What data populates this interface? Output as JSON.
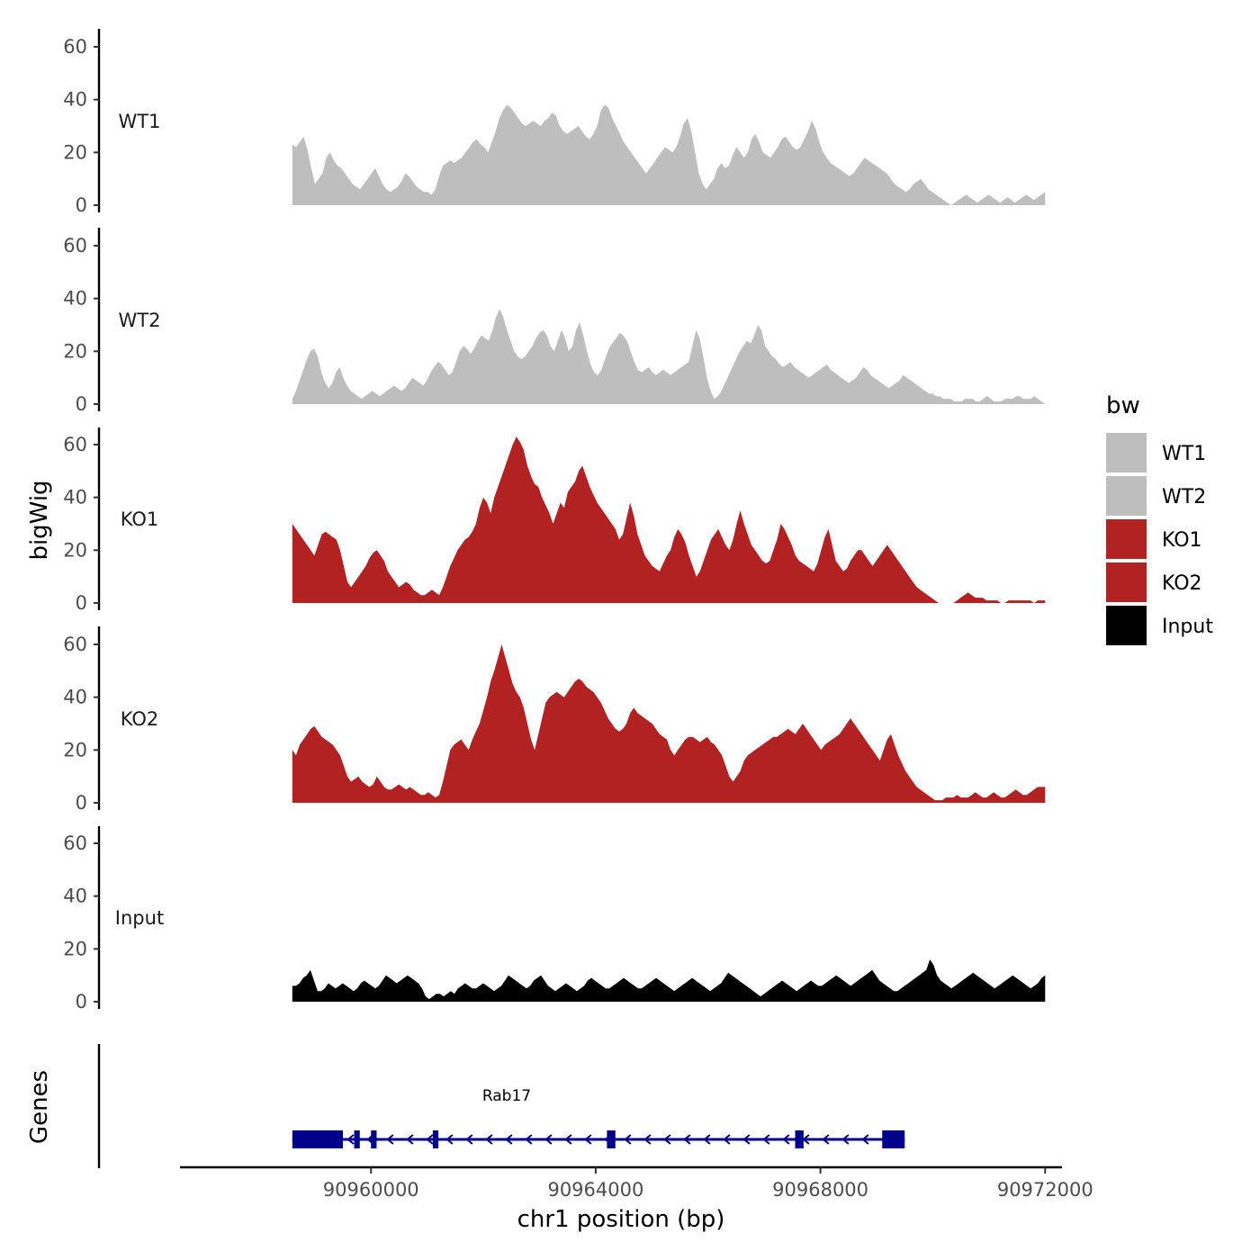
{
  "chart_data": {
    "type": "area",
    "title": "",
    "ylabel": "bigWig",
    "xlabel": "chr1 position (bp)",
    "ylim": [
      0,
      66
    ],
    "xlim": [
      90956600,
      90972300
    ],
    "yticks": [
      0,
      20,
      40,
      60
    ],
    "xticks": [
      90960000,
      90964000,
      90968000,
      90972000
    ],
    "xtick_labels": [
      "90960000",
      "90964000",
      "90968000",
      "90972000"
    ],
    "ytick_labels": [
      "0",
      "20",
      "40",
      "60"
    ],
    "track_x_range": [
      90958600,
      90972000
    ],
    "legend": {
      "title": "bw",
      "position": "right",
      "entries": [
        {
          "label": "WT1",
          "color": "#bebebe"
        },
        {
          "label": "WT2",
          "color": "#bebebe"
        },
        {
          "label": "KO1",
          "color": "#b22222"
        },
        {
          "label": "KO2",
          "color": "#b22222"
        },
        {
          "label": "Input",
          "color": "#000000"
        }
      ]
    },
    "series": [
      {
        "name": "WT1",
        "color": "#bebebe",
        "values": [
          23,
          22,
          24,
          26,
          21,
          14,
          8,
          10,
          12,
          18,
          20,
          17,
          15,
          14,
          12,
          10,
          8,
          7,
          6,
          8,
          10,
          12,
          14,
          11,
          8,
          6,
          5,
          6,
          7,
          9,
          12,
          11,
          9,
          7,
          6,
          5,
          5,
          4,
          6,
          11,
          15,
          16,
          17,
          16,
          17,
          18,
          20,
          22,
          24,
          25,
          23,
          22,
          20,
          24,
          28,
          33,
          36,
          38,
          37,
          35,
          33,
          31,
          30,
          31,
          32,
          31,
          30,
          32,
          33,
          35,
          34,
          30,
          28,
          27,
          28,
          29,
          30,
          28,
          26,
          25,
          27,
          30,
          36,
          38,
          37,
          33,
          30,
          27,
          24,
          22,
          20,
          18,
          16,
          14,
          12,
          14,
          16,
          18,
          20,
          22,
          21,
          20,
          22,
          26,
          31,
          33,
          28,
          20,
          12,
          8,
          6,
          8,
          10,
          14,
          16,
          14,
          15,
          19,
          22,
          20,
          18,
          20,
          25,
          27,
          24,
          20,
          19,
          18,
          20,
          22,
          25,
          26,
          24,
          22,
          21,
          22,
          25,
          28,
          32,
          29,
          24,
          20,
          18,
          16,
          15,
          14,
          13,
          12,
          11,
          12,
          14,
          16,
          18,
          17,
          16,
          15,
          14,
          13,
          12,
          10,
          8,
          7,
          6,
          5,
          6,
          8,
          9,
          10,
          8,
          6,
          5,
          4,
          3,
          2,
          1,
          0,
          1,
          2,
          3,
          4,
          3,
          2,
          1,
          2,
          3,
          4,
          3,
          2,
          1,
          2,
          3,
          2,
          1,
          2,
          3,
          4,
          3,
          2,
          3,
          4,
          5
        ]
      },
      {
        "name": "WT2",
        "color": "#bebebe",
        "values": [
          2,
          5,
          9,
          13,
          17,
          20,
          21,
          18,
          12,
          8,
          6,
          8,
          12,
          14,
          10,
          7,
          5,
          4,
          3,
          2,
          3,
          4,
          5,
          4,
          3,
          4,
          5,
          6,
          7,
          6,
          5,
          6,
          8,
          10,
          9,
          8,
          7,
          9,
          12,
          14,
          16,
          15,
          13,
          11,
          12,
          16,
          20,
          22,
          21,
          19,
          21,
          24,
          26,
          25,
          24,
          28,
          33,
          36,
          33,
          28,
          24,
          20,
          18,
          17,
          18,
          20,
          22,
          25,
          27,
          28,
          26,
          22,
          20,
          24,
          28,
          25,
          20,
          22,
          28,
          31,
          26,
          20,
          15,
          12,
          11,
          13,
          17,
          21,
          23,
          25,
          27,
          26,
          24,
          20,
          16,
          13,
          12,
          13,
          14,
          12,
          11,
          12,
          13,
          12,
          11,
          12,
          13,
          14,
          15,
          16,
          22,
          28,
          25,
          18,
          10,
          5,
          2,
          3,
          5,
          8,
          11,
          14,
          17,
          20,
          22,
          24,
          23,
          26,
          30,
          28,
          22,
          20,
          18,
          17,
          15,
          14,
          15,
          16,
          14,
          13,
          12,
          11,
          10,
          11,
          12,
          13,
          14,
          15,
          13,
          12,
          11,
          10,
          9,
          8,
          9,
          10,
          12,
          14,
          13,
          11,
          10,
          9,
          8,
          7,
          6,
          7,
          8,
          9,
          11,
          10,
          9,
          8,
          7,
          6,
          5,
          4,
          4,
          3,
          3,
          2,
          2,
          2,
          1,
          1,
          1,
          2,
          2,
          2,
          1,
          1,
          2,
          3,
          2,
          1,
          1,
          1,
          2,
          2,
          2,
          3,
          3,
          2,
          2,
          2,
          3,
          2,
          1,
          0
        ]
      },
      {
        "name": "KO1",
        "color": "#b22222",
        "values": [
          30,
          28,
          26,
          24,
          22,
          20,
          18,
          22,
          26,
          27,
          26,
          25,
          24,
          20,
          14,
          8,
          6,
          8,
          10,
          12,
          14,
          17,
          19,
          20,
          18,
          16,
          12,
          10,
          8,
          6,
          7,
          8,
          7,
          5,
          4,
          3,
          3,
          4,
          5,
          4,
          3,
          6,
          10,
          14,
          17,
          20,
          22,
          24,
          25,
          27,
          30,
          36,
          40,
          38,
          34,
          40,
          44,
          48,
          52,
          56,
          60,
          63,
          61,
          58,
          52,
          48,
          45,
          44,
          40,
          37,
          34,
          30,
          34,
          38,
          36,
          42,
          44,
          46,
          50,
          52,
          48,
          44,
          41,
          38,
          36,
          34,
          32,
          30,
          28,
          24,
          26,
          32,
          38,
          33,
          26,
          22,
          18,
          16,
          14,
          13,
          12,
          15,
          18,
          20,
          25,
          28,
          26,
          23,
          18,
          14,
          10,
          12,
          16,
          20,
          24,
          26,
          28,
          25,
          22,
          20,
          24,
          30,
          35,
          30,
          26,
          22,
          20,
          18,
          16,
          15,
          16,
          20,
          24,
          30,
          28,
          25,
          22,
          18,
          16,
          15,
          14,
          13,
          12,
          15,
          20,
          25,
          28,
          22,
          16,
          14,
          12,
          13,
          16,
          18,
          20,
          20,
          18,
          16,
          14,
          16,
          18,
          20,
          22,
          20,
          18,
          16,
          14,
          12,
          10,
          8,
          6,
          5,
          4,
          3,
          2,
          1,
          0,
          0,
          0,
          0,
          0,
          1,
          2,
          3,
          4,
          3,
          2,
          2,
          2,
          1,
          1,
          1,
          1,
          0,
          0,
          1,
          1,
          1,
          1,
          1,
          1,
          1,
          0,
          1,
          1,
          1
        ]
      },
      {
        "name": "KO2",
        "color": "#b22222",
        "values": [
          20,
          18,
          22,
          24,
          26,
          28,
          29,
          27,
          25,
          24,
          23,
          22,
          20,
          18,
          14,
          10,
          8,
          9,
          10,
          8,
          7,
          6,
          7,
          10,
          8,
          6,
          5,
          5,
          6,
          7,
          6,
          5,
          6,
          5,
          4,
          3,
          3,
          4,
          3,
          2,
          3,
          8,
          14,
          20,
          22,
          23,
          24,
          22,
          20,
          24,
          27,
          30,
          35,
          40,
          46,
          50,
          55,
          60,
          55,
          50,
          45,
          42,
          40,
          36,
          30,
          24,
          20,
          26,
          32,
          38,
          40,
          41,
          42,
          41,
          40,
          42,
          44,
          46,
          47,
          46,
          44,
          43,
          42,
          40,
          38,
          35,
          32,
          30,
          28,
          27,
          28,
          30,
          34,
          36,
          34,
          33,
          32,
          31,
          30,
          28,
          26,
          25,
          24,
          20,
          18,
          20,
          22,
          24,
          25,
          25,
          24,
          23,
          24,
          25,
          23,
          22,
          20,
          18,
          14,
          10,
          8,
          10,
          12,
          16,
          18,
          19,
          20,
          21,
          22,
          23,
          24,
          25,
          25,
          26,
          27,
          28,
          27,
          26,
          28,
          30,
          28,
          26,
          24,
          22,
          20,
          22,
          23,
          24,
          25,
          26,
          28,
          30,
          32,
          30,
          28,
          26,
          24,
          22,
          20,
          18,
          16,
          20,
          24,
          26,
          22,
          18,
          15,
          12,
          10,
          8,
          6,
          5,
          4,
          3,
          2,
          1,
          1,
          1,
          2,
          2,
          2,
          3,
          2,
          2,
          2,
          3,
          4,
          3,
          2,
          2,
          3,
          4,
          3,
          2,
          2,
          3,
          4,
          5,
          4,
          3,
          3,
          4,
          5,
          6,
          6,
          6
        ]
      },
      {
        "name": "Input",
        "color": "#000000",
        "values": [
          6,
          6,
          7,
          9,
          10,
          12,
          8,
          4,
          4,
          5,
          7,
          6,
          5,
          6,
          7,
          6,
          5,
          4,
          5,
          7,
          8,
          7,
          6,
          5,
          6,
          8,
          10,
          9,
          8,
          7,
          8,
          9,
          10,
          9,
          8,
          7,
          5,
          2,
          1,
          2,
          3,
          3,
          2,
          3,
          4,
          3,
          5,
          6,
          7,
          6,
          5,
          5,
          6,
          7,
          6,
          5,
          4,
          5,
          6,
          8,
          10,
          9,
          8,
          7,
          6,
          5,
          6,
          8,
          9,
          10,
          8,
          6,
          5,
          4,
          5,
          6,
          7,
          6,
          5,
          4,
          5,
          6,
          8,
          9,
          8,
          7,
          6,
          5,
          5,
          6,
          7,
          8,
          9,
          8,
          7,
          6,
          5,
          5,
          6,
          7,
          8,
          9,
          8,
          7,
          6,
          5,
          4,
          5,
          6,
          7,
          8,
          9,
          8,
          7,
          6,
          5,
          4,
          5,
          6,
          7,
          9,
          11,
          10,
          9,
          8,
          7,
          6,
          5,
          4,
          3,
          2,
          3,
          4,
          5,
          6,
          7,
          8,
          7,
          6,
          5,
          4,
          5,
          6,
          7,
          8,
          7,
          6,
          6,
          7,
          8,
          9,
          10,
          9,
          8,
          7,
          6,
          7,
          8,
          9,
          10,
          11,
          12,
          10,
          8,
          7,
          6,
          5,
          4,
          4,
          5,
          6,
          7,
          8,
          9,
          10,
          11,
          12,
          16,
          14,
          10,
          8,
          7,
          6,
          5,
          6,
          7,
          8,
          9,
          10,
          11,
          10,
          9,
          8,
          7,
          6,
          5,
          6,
          7,
          8,
          9,
          10,
          9,
          8,
          7,
          6,
          5,
          6,
          7,
          9,
          10
        ]
      }
    ],
    "genes": {
      "ylabel": "Genes",
      "name": "Rab17",
      "strand": "-",
      "start": 90958600,
      "end": 90969500,
      "exons": [
        [
          90958600,
          90959500
        ],
        [
          90959700,
          90959800
        ],
        [
          90960000,
          90960100
        ],
        [
          90961100,
          90961200
        ],
        [
          90964200,
          90964350
        ],
        [
          90967550,
          90967700
        ],
        [
          90969100,
          90969500
        ]
      ]
    }
  }
}
